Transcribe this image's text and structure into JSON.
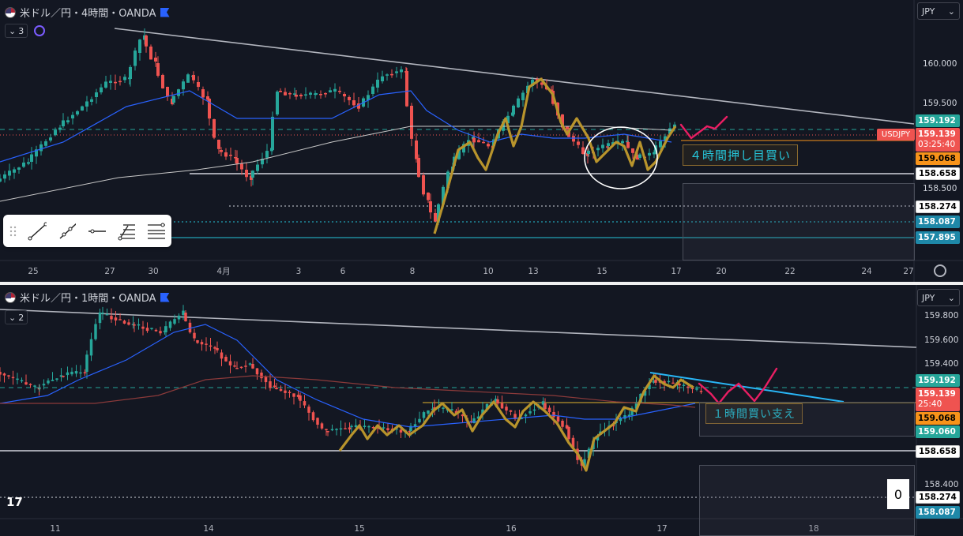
{
  "top_chart": {
    "title": "米ドル／円・4時間・OANDA",
    "indicator_count": "3",
    "currency": "JPY",
    "annotation": "４時間押し目買い",
    "symbol_tag": "USDJPY",
    "y_ticks": [
      "160.000",
      "159.500",
      "158.500"
    ],
    "price_labels": {
      "p1": "159.192",
      "p2": "159.139",
      "countdown": "03:25:40",
      "p3": "159.068",
      "p4": "158.658",
      "p5": "158.274",
      "p6": "158.087",
      "p7": "157.895"
    },
    "x_ticks": [
      "25",
      "27",
      "30",
      "4月",
      "3",
      "6",
      "8",
      "10",
      "13",
      "15",
      "17",
      "20",
      "22",
      "24",
      "27"
    ]
  },
  "bottom_chart": {
    "title": "米ドル／円・1時間・OANDA",
    "indicator_count": "2",
    "currency": "JPY",
    "annotation": "１時間買い支え",
    "y_ticks": [
      "159.800",
      "159.600",
      "159.400",
      "158.400"
    ],
    "price_labels": {
      "p1": "159.192",
      "p2": "159.139",
      "countdown": "25:40",
      "p3": "159.068",
      "p4": "159.060",
      "p5": "158.658",
      "p6": "158.274",
      "p7": "158.087"
    },
    "x_ticks": [
      "11",
      "14",
      "15",
      "16",
      "17",
      "18"
    ],
    "zero_box": "0"
  },
  "colors": {
    "background": "#131722",
    "up": "#26a69a",
    "down": "#ef5350",
    "ema": "#2962ff",
    "trend_line": "#b2b5be",
    "hand_drawn_path": "#b8942c",
    "forecast_pink": "#e91e63",
    "cyan_line": "#26c6da"
  },
  "toolbar_icons": [
    "drag-handle-icon",
    "trend-line-icon",
    "ray-icon",
    "horizontal-line-icon",
    "fib-retracement-icon",
    "parallel-channel-icon"
  ]
}
